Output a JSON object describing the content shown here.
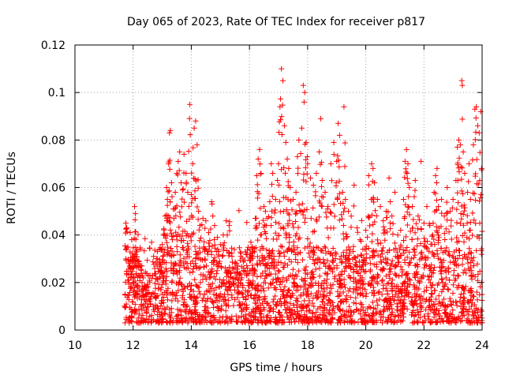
{
  "chart_data": {
    "type": "scatter",
    "title": "Day 065 of 2023, Rate Of TEC Index for receiver p817",
    "xlabel": "GPS time / hours",
    "ylabel": "ROTI / TECUs",
    "xlim": [
      10,
      24
    ],
    "ylim": [
      0,
      0.12
    ],
    "x_ticks": [
      10,
      12,
      14,
      16,
      18,
      20,
      22,
      24
    ],
    "x_tick_labels": [
      "10",
      "12",
      "14",
      "16",
      "18",
      "20",
      "22",
      "24"
    ],
    "y_ticks": [
      0,
      0.02,
      0.04,
      0.06,
      0.08,
      0.1,
      0.12
    ],
    "y_tick_labels": [
      "0",
      "0.02",
      "0.04",
      "0.06",
      "0.08",
      "0.1",
      "0.12"
    ],
    "grid": true,
    "marker": "+",
    "color": "#ff0000",
    "series": [
      {
        "name": "ROTI",
        "points": [
          [
            11.75,
            0.045
          ],
          [
            11.78,
            0.043
          ],
          [
            11.82,
            0.035
          ],
          [
            11.85,
            0.028
          ],
          [
            11.9,
            0.041
          ],
          [
            11.95,
            0.038
          ],
          [
            12.0,
            0.031
          ],
          [
            12.05,
            0.052
          ],
          [
            12.08,
            0.049
          ],
          [
            12.12,
            0.033
          ],
          [
            12.2,
            0.029
          ],
          [
            12.25,
            0.034
          ],
          [
            12.3,
            0.027
          ],
          [
            12.35,
            0.022
          ],
          [
            12.8,
            0.03
          ],
          [
            12.9,
            0.034
          ],
          [
            13.0,
            0.036
          ],
          [
            13.05,
            0.04
          ],
          [
            13.1,
            0.048
          ],
          [
            13.15,
            0.06
          ],
          [
            13.18,
            0.055
          ],
          [
            13.22,
            0.07
          ],
          [
            13.25,
            0.083
          ],
          [
            13.28,
            0.084
          ],
          [
            13.32,
            0.062
          ],
          [
            13.38,
            0.051
          ],
          [
            13.45,
            0.058
          ],
          [
            13.5,
            0.066
          ],
          [
            13.55,
            0.071
          ],
          [
            13.6,
            0.075
          ],
          [
            13.65,
            0.062
          ],
          [
            13.7,
            0.059
          ],
          [
            13.75,
            0.074
          ],
          [
            13.82,
            0.066
          ],
          [
            13.88,
            0.058
          ],
          [
            13.95,
            0.095
          ],
          [
            14.0,
            0.057
          ],
          [
            14.05,
            0.07
          ],
          [
            14.1,
            0.085
          ],
          [
            14.15,
            0.088
          ],
          [
            14.2,
            0.078
          ],
          [
            14.25,
            0.05
          ],
          [
            14.3,
            0.044
          ],
          [
            14.4,
            0.047
          ],
          [
            14.5,
            0.046
          ],
          [
            14.6,
            0.041
          ],
          [
            14.7,
            0.054
          ],
          [
            14.8,
            0.044
          ],
          [
            14.9,
            0.039
          ],
          [
            15.0,
            0.036
          ],
          [
            15.1,
            0.04
          ],
          [
            15.2,
            0.046
          ],
          [
            15.3,
            0.044
          ],
          [
            15.4,
            0.031
          ],
          [
            15.5,
            0.028
          ],
          [
            15.6,
            0.027
          ],
          [
            15.7,
            0.031
          ],
          [
            15.8,
            0.026
          ],
          [
            15.9,
            0.023
          ],
          [
            16.05,
            0.037
          ],
          [
            16.1,
            0.035
          ],
          [
            16.2,
            0.047
          ],
          [
            16.25,
            0.065
          ],
          [
            16.3,
            0.072
          ],
          [
            16.35,
            0.076
          ],
          [
            16.4,
            0.066
          ],
          [
            16.5,
            0.052
          ],
          [
            16.55,
            0.05
          ],
          [
            16.6,
            0.047
          ],
          [
            16.7,
            0.054
          ],
          [
            16.75,
            0.07
          ],
          [
            16.8,
            0.066
          ],
          [
            16.9,
            0.055
          ],
          [
            17.0,
            0.07
          ],
          [
            17.05,
            0.094
          ],
          [
            17.1,
            0.11
          ],
          [
            17.15,
            0.105
          ],
          [
            17.2,
            0.086
          ],
          [
            17.25,
            0.079
          ],
          [
            17.3,
            0.072
          ],
          [
            17.35,
            0.068
          ],
          [
            17.4,
            0.06
          ],
          [
            17.5,
            0.055
          ],
          [
            17.6,
            0.058
          ],
          [
            17.65,
            0.073
          ],
          [
            17.7,
            0.08
          ],
          [
            17.8,
            0.085
          ],
          [
            17.85,
            0.103
          ],
          [
            17.9,
            0.1
          ],
          [
            17.95,
            0.079
          ],
          [
            18.0,
            0.07
          ],
          [
            18.1,
            0.064
          ],
          [
            18.2,
            0.061
          ],
          [
            18.3,
            0.066
          ],
          [
            18.4,
            0.075
          ],
          [
            18.45,
            0.089
          ],
          [
            18.5,
            0.063
          ],
          [
            18.6,
            0.058
          ],
          [
            18.7,
            0.052
          ],
          [
            18.8,
            0.07
          ],
          [
            18.9,
            0.079
          ],
          [
            19.0,
            0.071
          ],
          [
            19.05,
            0.087
          ],
          [
            19.1,
            0.082
          ],
          [
            19.2,
            0.058
          ],
          [
            19.25,
            0.094
          ],
          [
            19.3,
            0.055
          ],
          [
            19.4,
            0.05
          ],
          [
            19.5,
            0.048
          ],
          [
            19.6,
            0.061
          ],
          [
            19.7,
            0.043
          ],
          [
            19.8,
            0.038
          ],
          [
            19.9,
            0.034
          ],
          [
            20.0,
            0.042
          ],
          [
            20.1,
            0.065
          ],
          [
            20.2,
            0.07
          ],
          [
            20.25,
            0.068
          ],
          [
            20.3,
            0.062
          ],
          [
            20.4,
            0.055
          ],
          [
            20.5,
            0.052
          ],
          [
            20.6,
            0.046
          ],
          [
            20.7,
            0.05
          ],
          [
            20.8,
            0.064
          ],
          [
            20.9,
            0.048
          ],
          [
            21.0,
            0.058
          ],
          [
            21.1,
            0.04
          ],
          [
            21.2,
            0.042
          ],
          [
            21.3,
            0.055
          ],
          [
            21.35,
            0.071
          ],
          [
            21.4,
            0.076
          ],
          [
            21.45,
            0.07
          ],
          [
            21.5,
            0.06
          ],
          [
            21.6,
            0.052
          ],
          [
            21.7,
            0.063
          ],
          [
            21.8,
            0.048
          ],
          [
            21.9,
            0.071
          ],
          [
            22.0,
            0.045
          ],
          [
            22.1,
            0.052
          ],
          [
            22.2,
            0.044
          ],
          [
            22.3,
            0.04
          ],
          [
            22.35,
            0.058
          ],
          [
            22.4,
            0.065
          ],
          [
            22.45,
            0.068
          ],
          [
            22.5,
            0.052
          ],
          [
            22.6,
            0.055
          ],
          [
            22.7,
            0.048
          ],
          [
            22.8,
            0.06
          ],
          [
            22.9,
            0.05
          ],
          [
            23.0,
            0.055
          ],
          [
            23.1,
            0.063
          ],
          [
            23.15,
            0.077
          ],
          [
            23.2,
            0.08
          ],
          [
            23.25,
            0.078
          ],
          [
            23.3,
            0.105
          ],
          [
            23.32,
            0.103
          ],
          [
            23.35,
            0.075
          ],
          [
            23.4,
            0.066
          ],
          [
            23.5,
            0.058
          ],
          [
            23.55,
            0.07
          ],
          [
            23.6,
            0.055
          ],
          [
            23.7,
            0.078
          ],
          [
            23.75,
            0.093
          ],
          [
            23.8,
            0.094
          ],
          [
            23.85,
            0.086
          ],
          [
            23.9,
            0.083
          ],
          [
            23.95,
            0.092
          ],
          [
            23.98,
            0.068
          ]
        ],
        "noise_band": {
          "x_start": 11.7,
          "x_end": 24.0,
          "baseline_min": 0.003,
          "baseline_max": 0.035,
          "count": 2200
        }
      }
    ]
  }
}
